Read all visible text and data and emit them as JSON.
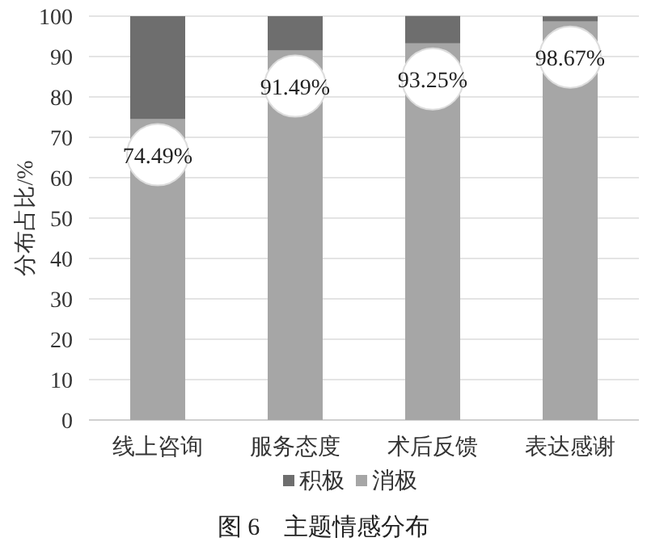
{
  "chart_data": {
    "type": "bar",
    "stacked": true,
    "title": "图 6　主题情感分布",
    "ylabel": "分布占比/%",
    "categories": [
      "线上咨询",
      "服务态度",
      "术后反馈",
      "表达感谢"
    ],
    "series": [
      {
        "name": "消极",
        "color": "#a6a6a6",
        "values": [
          74.49,
          91.49,
          93.25,
          98.67
        ],
        "value_labels": [
          "74.49%",
          "91.49%",
          "93.25%",
          "98.67%"
        ]
      },
      {
        "name": "积极",
        "color": "#6e6e6e",
        "values": [
          25.5,
          8.5,
          6.8,
          1.3
        ]
      }
    ],
    "ylim": [
      0,
      100
    ],
    "yticks": [
      0,
      10,
      20,
      30,
      40,
      50,
      60,
      70,
      80,
      90,
      100
    ],
    "grid": "y",
    "legend": "bottom"
  }
}
